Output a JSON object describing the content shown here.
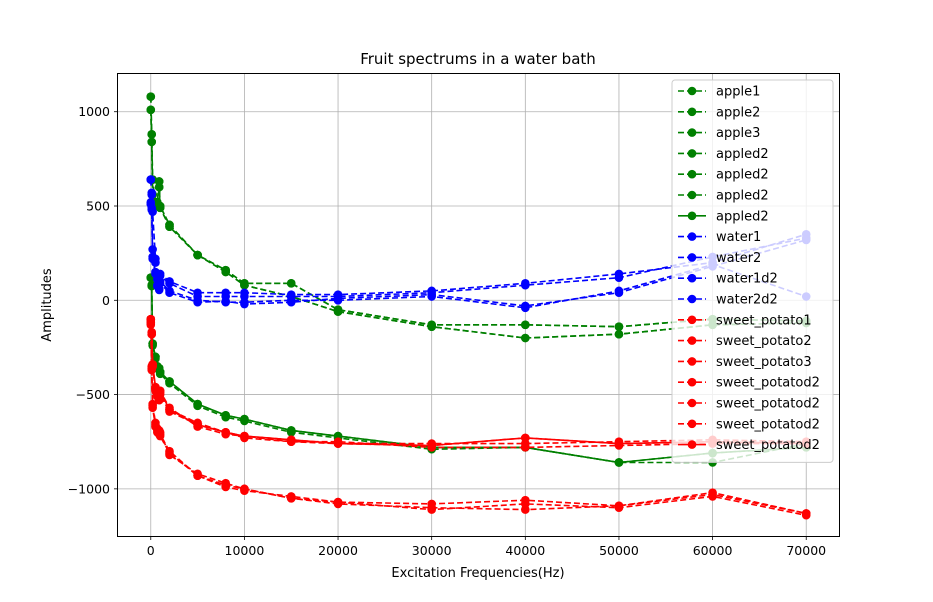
{
  "chart_data": {
    "type": "line",
    "title": "Fruit spectrums in a water bath",
    "xlabel": "Excitation Frequencies(Hz)",
    "ylabel": "Amplitudes",
    "xlim": [
      -3500,
      73500
    ],
    "ylim": [
      -1250,
      1200
    ],
    "xticks": [
      0,
      10000,
      20000,
      30000,
      40000,
      50000,
      60000,
      70000
    ],
    "yticks": [
      -1000,
      -500,
      0,
      500,
      1000
    ],
    "grid": true,
    "legend": "top-right",
    "x": [
      0,
      100,
      200,
      500,
      700,
      900,
      1000,
      2000,
      5000,
      8000,
      10000,
      15000,
      20000,
      30000,
      40000,
      50000,
      60000,
      70000
    ],
    "colors": {
      "apple": "#008000",
      "water": "#0000ff",
      "sweet_potato": "#ff0000"
    },
    "series": [
      {
        "name": "apple1",
        "color": "#008000",
        "style": "dashed",
        "values": [
          1080,
          880,
          640,
          500,
          520,
          630,
          500,
          400,
          240,
          160,
          90,
          90,
          -50,
          -130,
          -130,
          -140,
          -100,
          -110
        ]
      },
      {
        "name": "apple2",
        "color": "#008000",
        "style": "dashed",
        "values": [
          1010,
          840,
          560,
          520,
          500,
          600,
          490,
          390,
          240,
          150,
          80,
          20,
          -60,
          -140,
          -200,
          -180,
          -130,
          -120
        ]
      },
      {
        "name": "apple3",
        "color": "#008000",
        "style": "dashed",
        "values": [
          120,
          80,
          -230,
          -300,
          -350,
          -360,
          -380,
          -430,
          -550,
          -610,
          -630,
          -690,
          -720,
          -780,
          -780,
          -860,
          -810,
          -780
        ]
      },
      {
        "name": "appled2",
        "color": "#008000",
        "style": "dashed",
        "values": [
          120,
          75,
          -240,
          -310,
          -360,
          -370,
          -390,
          -440,
          -560,
          -620,
          -640,
          -700,
          -730,
          -790,
          -780,
          -860,
          -860,
          -760
        ]
      },
      {
        "name": "appled2",
        "color": "#008000",
        "style": "dashed",
        "values": [
          1080,
          880,
          640,
          500,
          520,
          630,
          500,
          400,
          240,
          160,
          90,
          90,
          -50,
          -130,
          -130,
          -140,
          -100,
          -110
        ]
      },
      {
        "name": "appled2",
        "color": "#008000",
        "style": "dashed",
        "values": [
          1010,
          840,
          560,
          520,
          500,
          600,
          490,
          390,
          240,
          150,
          80,
          20,
          -60,
          -140,
          -200,
          -180,
          -130,
          -120
        ]
      },
      {
        "name": "appled2",
        "color": "#008000",
        "style": "solid",
        "values": [
          120,
          80,
          -230,
          -300,
          -350,
          -360,
          -380,
          -430,
          -550,
          -610,
          -630,
          -690,
          -720,
          -780,
          -780,
          -860,
          -810,
          -780
        ]
      },
      {
        "name": "water1",
        "color": "#0000ff",
        "style": "dashed",
        "values": [
          640,
          570,
          270,
          200,
          130,
          100,
          140,
          100,
          40,
          40,
          40,
          30,
          30,
          50,
          90,
          140,
          200,
          350
        ]
      },
      {
        "name": "water2",
        "color": "#0000ff",
        "style": "dashed",
        "values": [
          640,
          560,
          470,
          220,
          110,
          90,
          130,
          90,
          20,
          20,
          20,
          20,
          20,
          40,
          80,
          120,
          230,
          330
        ]
      },
      {
        "name": "water1d2",
        "color": "#0000ff",
        "style": "dashed",
        "values": [
          520,
          490,
          230,
          150,
          80,
          60,
          100,
          50,
          0,
          -10,
          -10,
          0,
          0,
          20,
          -40,
          50,
          190,
          20
        ]
      },
      {
        "name": "water2d2",
        "color": "#0000ff",
        "style": "dashed",
        "values": [
          510,
          480,
          220,
          140,
          75,
          55,
          90,
          40,
          -10,
          -5,
          -20,
          -10,
          10,
          30,
          -30,
          40,
          180,
          320
        ]
      },
      {
        "name": "sweet_potato1",
        "color": "#ff0000",
        "style": "dashed",
        "values": [
          -100,
          -170,
          -340,
          -470,
          -500,
          -520,
          -490,
          -580,
          -650,
          -700,
          -720,
          -740,
          -760,
          -770,
          -730,
          -760,
          -750,
          -760
        ]
      },
      {
        "name": "sweet_potato2",
        "color": "#ff0000",
        "style": "dashed",
        "values": [
          -120,
          -360,
          -560,
          -660,
          -690,
          -700,
          -710,
          -800,
          -930,
          -980,
          -1000,
          -1050,
          -1070,
          -1080,
          -1060,
          -1090,
          -1030,
          -1130
        ]
      },
      {
        "name": "sweet_potato3",
        "color": "#ff0000",
        "style": "dashed",
        "values": [
          -100,
          -170,
          -350,
          -480,
          -510,
          -530,
          -500,
          -590,
          -660,
          -700,
          -730,
          -750,
          -760,
          -760,
          -760,
          -750,
          -740,
          -750
        ]
      },
      {
        "name": "sweet_potatod2",
        "color": "#ff0000",
        "style": "dashed",
        "values": [
          -120,
          -370,
          -570,
          -670,
          -700,
          -710,
          -720,
          -810,
          -930,
          -990,
          -1010,
          -1040,
          -1070,
          -1110,
          -1080,
          -1100,
          -1040,
          -1140
        ]
      },
      {
        "name": "sweet_potatod2",
        "color": "#ff0000",
        "style": "dashed",
        "values": [
          -110,
          -180,
          -350,
          -470,
          -490,
          -510,
          -480,
          -570,
          -670,
          -710,
          -720,
          -750,
          -750,
          -780,
          -780,
          -770,
          -760,
          -760
        ]
      },
      {
        "name": "sweet_potatod2",
        "color": "#ff0000",
        "style": "dashed",
        "values": [
          -130,
          -350,
          -550,
          -650,
          -680,
          -690,
          -700,
          -820,
          -920,
          -970,
          -1000,
          -1050,
          -1080,
          -1100,
          -1110,
          -1090,
          -1020,
          -1130
        ]
      },
      {
        "name": "sweet_potatod2",
        "color": "#ff0000",
        "style": "solid",
        "values": [
          -100,
          -180,
          -340,
          -460,
          -490,
          -510,
          -480,
          -580,
          -660,
          -700,
          -720,
          -740,
          -760,
          -770,
          -730,
          -760,
          -750,
          -760
        ]
      }
    ]
  }
}
